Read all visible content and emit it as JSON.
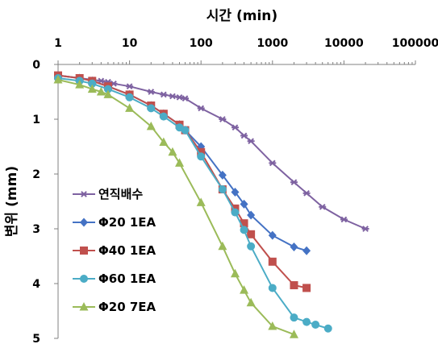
{
  "chart_data": {
    "type": "line",
    "title": "",
    "xlabel": "시간 (min)",
    "ylabel": "변위 (mm)",
    "x_scale": "log",
    "xlim": [
      1,
      100000
    ],
    "ylim": [
      0,
      5
    ],
    "y_inverted": true,
    "x_ticks": [
      "1",
      "10",
      "100",
      "1000",
      "10000",
      "100000"
    ],
    "y_ticks": [
      "0",
      "1",
      "2",
      "3",
      "4",
      "5"
    ],
    "grid": false,
    "legend_position": "bottom-left",
    "series": [
      {
        "name": "연직배수",
        "color": "#7E62A1",
        "marker": "star",
        "x": [
          1,
          2,
          3,
          4,
          5,
          6,
          10,
          20,
          30,
          40,
          50,
          60,
          100,
          200,
          300,
          400,
          500,
          1000,
          2000,
          3000,
          5000,
          10000,
          20000
        ],
        "y": [
          0.2,
          0.25,
          0.28,
          0.3,
          0.32,
          0.35,
          0.4,
          0.5,
          0.55,
          0.58,
          0.6,
          0.62,
          0.8,
          1.0,
          1.15,
          1.3,
          1.4,
          1.8,
          2.15,
          2.35,
          2.6,
          2.83,
          3.0
        ]
      },
      {
        "name": "Φ20 1EA",
        "color": "#4472C4",
        "marker": "diamond",
        "x": [
          1,
          2,
          3,
          5,
          10,
          20,
          30,
          50,
          60,
          100,
          200,
          300,
          400,
          500,
          1000,
          2000,
          3000
        ],
        "y": [
          0.2,
          0.25,
          0.3,
          0.4,
          0.55,
          0.75,
          0.9,
          1.1,
          1.2,
          1.5,
          2.02,
          2.33,
          2.55,
          2.75,
          3.12,
          3.33,
          3.4
        ]
      },
      {
        "name": "Φ40 1EA",
        "color": "#C0504D",
        "marker": "square",
        "x": [
          1,
          2,
          3,
          5,
          10,
          20,
          30,
          50,
          60,
          100,
          200,
          300,
          400,
          500,
          1000,
          2000,
          3000
        ],
        "y": [
          0.2,
          0.25,
          0.3,
          0.4,
          0.55,
          0.75,
          0.9,
          1.1,
          1.2,
          1.6,
          2.28,
          2.63,
          2.9,
          3.1,
          3.6,
          4.03,
          4.08
        ]
      },
      {
        "name": "Φ60 1EA",
        "color": "#4BACC6",
        "marker": "circle",
        "x": [
          1,
          2,
          3,
          5,
          10,
          20,
          30,
          50,
          60,
          100,
          200,
          300,
          400,
          500,
          1000,
          2000,
          3000,
          4000,
          6000
        ],
        "y": [
          0.25,
          0.3,
          0.35,
          0.45,
          0.6,
          0.8,
          0.95,
          1.15,
          1.2,
          1.68,
          2.28,
          2.7,
          3.02,
          3.32,
          4.08,
          4.62,
          4.7,
          4.75,
          4.82
        ]
      },
      {
        "name": "Φ20 7EA",
        "color": "#9BBB59",
        "marker": "triangle",
        "x": [
          1,
          2,
          3,
          4,
          5,
          10,
          20,
          30,
          40,
          50,
          100,
          200,
          300,
          400,
          500,
          1000,
          2000
        ],
        "y": [
          0.28,
          0.37,
          0.45,
          0.5,
          0.55,
          0.8,
          1.13,
          1.42,
          1.6,
          1.8,
          2.52,
          3.32,
          3.82,
          4.12,
          4.35,
          4.78,
          4.93
        ]
      }
    ]
  }
}
